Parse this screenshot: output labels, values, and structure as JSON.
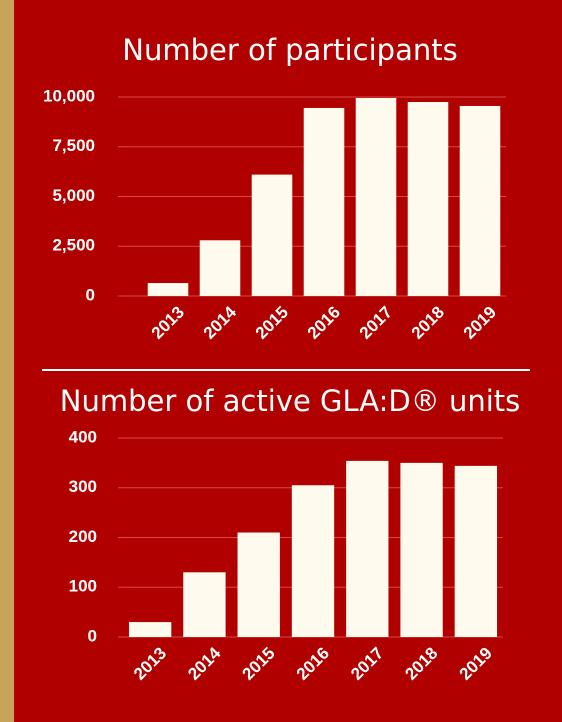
{
  "chart_data": [
    {
      "type": "bar",
      "title": "Number of participants",
      "categories": [
        "2013",
        "2014",
        "2015",
        "2016",
        "2017",
        "2018",
        "2019"
      ],
      "values": [
        650,
        2800,
        6100,
        9450,
        9950,
        9750,
        9550
      ],
      "color": "#fffaee",
      "ylim": [
        0,
        10000
      ],
      "yticks": [
        0,
        {
          "value": 2500,
          "label": "2,500"
        },
        {
          "value": 5000,
          "label": "5,000"
        },
        {
          "value": 7500,
          "label": "7,500"
        },
        {
          "value": 10000,
          "label": "10,000"
        }
      ],
      "grid": true
    },
    {
      "type": "bar",
      "title": "Number of active GLA:D® units",
      "categories": [
        "2013",
        "2014",
        "2015",
        "2016",
        "2017",
        "2018",
        "2019"
      ],
      "values": [
        30,
        130,
        210,
        305,
        354,
        350,
        344
      ],
      "color": "#fffaee",
      "ylim": [
        0,
        400
      ],
      "yticks": [
        0,
        100,
        200,
        300,
        400
      ],
      "grid": true
    }
  ]
}
